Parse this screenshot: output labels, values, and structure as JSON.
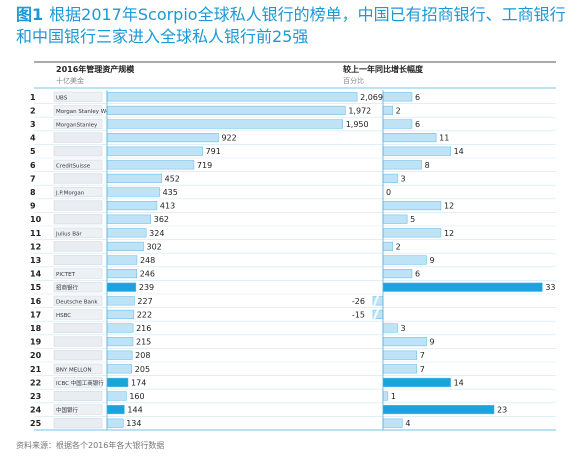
{
  "title": {
    "lead": "图1",
    "text": "根据2017年Scorpio全球私人银行的榜单，中国已有招商银行、工商银行和中国银行三家进入全球私人银行前25强"
  },
  "footer": "资料来源：根据各个2016年各大银行数据",
  "colors": {
    "bar_light": "#bfe3f6",
    "bar_highlight": "#1aa3dd",
    "bar_border": "#5bb8e6",
    "title": "#1b98d5",
    "grid": "#4fb0e0"
  },
  "chart_data": {
    "type": "bar",
    "panels": [
      {
        "title": "2016年管理资产规模",
        "unit": "十亿美金",
        "ylim": [
          0,
          2300
        ]
      },
      {
        "title": "较上一年同比增长幅度",
        "unit": "百分比",
        "ylim": [
          -30,
          35
        ]
      }
    ],
    "rows": [
      {
        "rank": "1",
        "bank": "UBS",
        "aum": 2069,
        "growth": 6,
        "highlight": false
      },
      {
        "rank": "2",
        "bank": "Morgan Stanley Wealth Mgmt",
        "aum": 1972,
        "growth": 2,
        "highlight": false
      },
      {
        "rank": "3",
        "bank": "MorganStanley",
        "aum": 1950,
        "growth": 6,
        "highlight": false
      },
      {
        "rank": "4",
        "bank": "",
        "aum": 922,
        "growth": 11,
        "highlight": false
      },
      {
        "rank": "5",
        "bank": "",
        "aum": 791,
        "growth": 14,
        "highlight": false
      },
      {
        "rank": "6",
        "bank": "CreditSuisse",
        "aum": 719,
        "growth": 8,
        "highlight": false
      },
      {
        "rank": "7",
        "bank": "",
        "aum": 452,
        "growth": 3,
        "highlight": false
      },
      {
        "rank": "8",
        "bank": "J.P.Morgan",
        "aum": 435,
        "growth": 0,
        "highlight": false
      },
      {
        "rank": "9",
        "bank": "",
        "aum": 413,
        "growth": 12,
        "highlight": false
      },
      {
        "rank": "10",
        "bank": "",
        "aum": 362,
        "growth": 5,
        "highlight": false
      },
      {
        "rank": "11",
        "bank": "Julius Bär",
        "aum": 324,
        "growth": 12,
        "highlight": false
      },
      {
        "rank": "12",
        "bank": "",
        "aum": 302,
        "growth": 2,
        "highlight": false
      },
      {
        "rank": "13",
        "bank": "",
        "aum": 248,
        "growth": 9,
        "highlight": false
      },
      {
        "rank": "14",
        "bank": "PICTET",
        "aum": 246,
        "growth": 6,
        "highlight": false
      },
      {
        "rank": "15",
        "bank": "招商银行",
        "aum": 239,
        "growth": 33,
        "highlight": true
      },
      {
        "rank": "16",
        "bank": "Deutsche Bank",
        "aum": 227,
        "growth": -26,
        "highlight": false
      },
      {
        "rank": "17",
        "bank": "HSBC",
        "aum": 222,
        "growth": -15,
        "highlight": false
      },
      {
        "rank": "18",
        "bank": "",
        "aum": 216,
        "growth": 3,
        "highlight": false
      },
      {
        "rank": "19",
        "bank": "",
        "aum": 215,
        "growth": 9,
        "highlight": false
      },
      {
        "rank": "20",
        "bank": "",
        "aum": 208,
        "growth": 7,
        "highlight": false
      },
      {
        "rank": "21",
        "bank": "BNY MELLON",
        "aum": 205,
        "growth": 7,
        "highlight": false
      },
      {
        "rank": "22",
        "bank": "ICBC 中国工商银行",
        "aum": 174,
        "growth": 14,
        "highlight": true
      },
      {
        "rank": "23",
        "bank": "",
        "aum": 160,
        "growth": 1,
        "highlight": false
      },
      {
        "rank": "24",
        "bank": "中国银行",
        "aum": 144,
        "growth": 23,
        "highlight": true
      },
      {
        "rank": "25",
        "bank": "",
        "aum": 134,
        "growth": 4,
        "highlight": false
      }
    ]
  }
}
